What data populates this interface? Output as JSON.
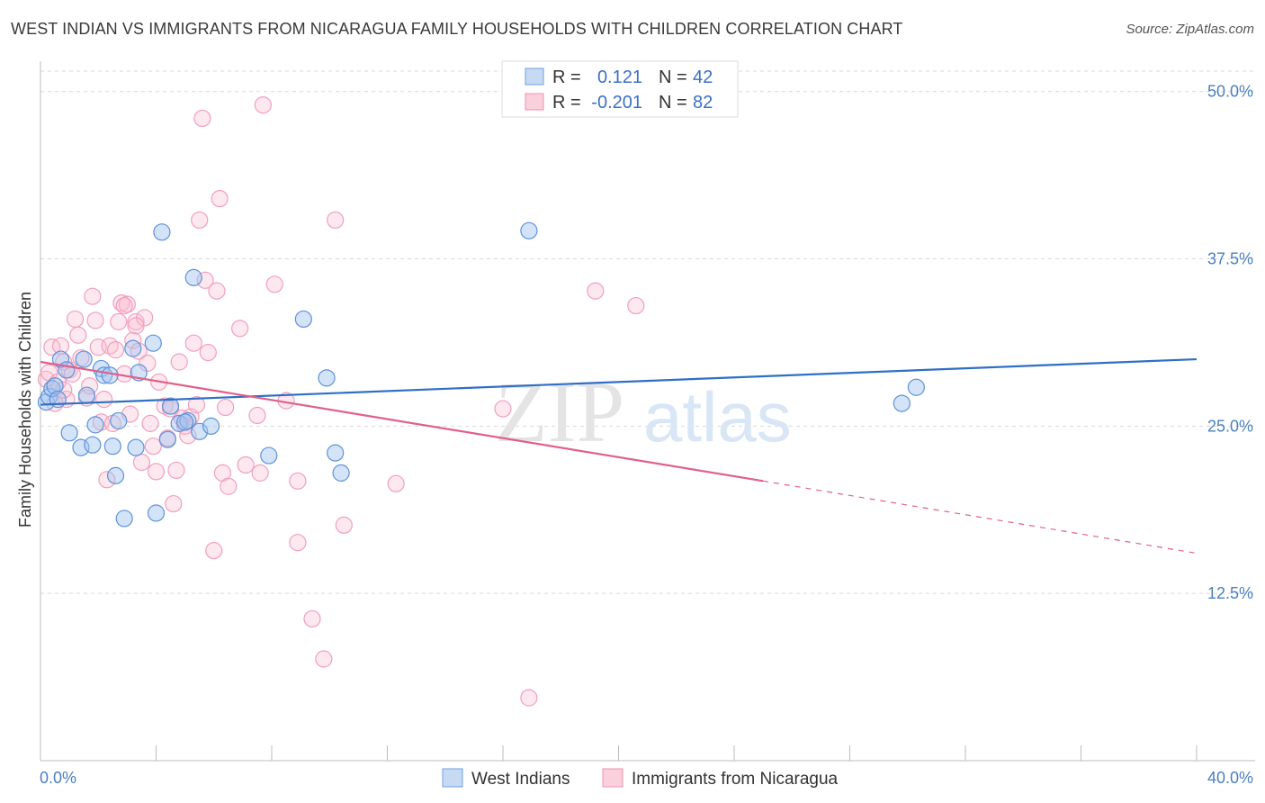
{
  "header": {
    "title": "WEST INDIAN VS IMMIGRANTS FROM NICARAGUA FAMILY HOUSEHOLDS WITH CHILDREN CORRELATION CHART",
    "source": "Source: ZipAtlas.com"
  },
  "watermark": {
    "zip": "ZIP",
    "atlas": "atlas"
  },
  "legend_top": [
    {
      "r_label": "R =",
      "r_value": "0.121",
      "n_label": "N =",
      "n_value": "42"
    },
    {
      "r_label": "R =",
      "r_value": "-0.201",
      "n_label": "N =",
      "n_value": "82"
    }
  ],
  "chart_data": {
    "type": "scatter",
    "title": "WEST INDIAN VS IMMIGRANTS FROM NICARAGUA FAMILY HOUSEHOLDS WITH CHILDREN CORRELATION CHART",
    "xlabel": "",
    "ylabel": "Family Households with Children",
    "xlim": [
      0,
      40
    ],
    "ylim": [
      0,
      52
    ],
    "x_tick_labels": [
      "0.0%",
      "40.0%"
    ],
    "y_ticks": [
      12.5,
      25.0,
      37.5,
      50.0
    ],
    "y_tick_labels": [
      "12.5%",
      "25.0%",
      "37.5%",
      "50.0%"
    ],
    "grid": true,
    "legend_position": "top-center",
    "colors": {
      "west_indians": "#6f9fe0",
      "nicaragua": "#f08fae",
      "blue_line": "#2f6fc7",
      "pink_line": "#e0608a"
    },
    "series": [
      {
        "name": "West Indians",
        "trend": {
          "x0": 0,
          "y0": 26.6,
          "x1": 40,
          "y1": 30.0
        },
        "points": [
          [
            0.2,
            26.8
          ],
          [
            0.3,
            27.2
          ],
          [
            0.4,
            27.8
          ],
          [
            0.5,
            28.0
          ],
          [
            0.6,
            27.0
          ],
          [
            0.7,
            30.0
          ],
          [
            0.9,
            29.2
          ],
          [
            1.0,
            24.5
          ],
          [
            1.4,
            23.4
          ],
          [
            1.5,
            30.0
          ],
          [
            1.6,
            27.3
          ],
          [
            1.8,
            23.6
          ],
          [
            1.9,
            25.1
          ],
          [
            2.1,
            29.3
          ],
          [
            2.2,
            28.8
          ],
          [
            2.4,
            28.8
          ],
          [
            2.5,
            23.5
          ],
          [
            2.6,
            21.3
          ],
          [
            2.7,
            25.4
          ],
          [
            2.9,
            18.1
          ],
          [
            3.2,
            30.8
          ],
          [
            3.3,
            23.4
          ],
          [
            3.4,
            29.0
          ],
          [
            3.9,
            31.2
          ],
          [
            4.0,
            18.5
          ],
          [
            4.2,
            39.5
          ],
          [
            4.4,
            24.0
          ],
          [
            4.5,
            26.5
          ],
          [
            4.8,
            25.2
          ],
          [
            5.1,
            25.4
          ],
          [
            5.3,
            36.1
          ],
          [
            5.5,
            24.6
          ],
          [
            5.9,
            25.0
          ],
          [
            7.9,
            22.8
          ],
          [
            9.1,
            33.0
          ],
          [
            9.9,
            28.6
          ],
          [
            10.2,
            23.0
          ],
          [
            10.4,
            21.5
          ],
          [
            16.9,
            39.6
          ],
          [
            29.8,
            26.7
          ],
          [
            30.3,
            27.9
          ],
          [
            5.0,
            25.3
          ]
        ]
      },
      {
        "name": "Immigrants from Nicaragua",
        "trend": {
          "x0": 0,
          "y0": 29.8,
          "x1": 25,
          "y1": 20.9,
          "x_dash_end": 40,
          "y_dash_end": 15.5
        },
        "points": [
          [
            0.2,
            28.5
          ],
          [
            0.3,
            29.0
          ],
          [
            0.4,
            30.9
          ],
          [
            0.5,
            26.7
          ],
          [
            0.6,
            28.3
          ],
          [
            0.7,
            31.0
          ],
          [
            0.8,
            29.8
          ],
          [
            0.9,
            27.0
          ],
          [
            1.0,
            29.2
          ],
          [
            1.2,
            33.0
          ],
          [
            1.3,
            31.8
          ],
          [
            1.4,
            30.1
          ],
          [
            1.6,
            27.1
          ],
          [
            1.7,
            28.0
          ],
          [
            1.8,
            34.7
          ],
          [
            1.9,
            32.9
          ],
          [
            2.0,
            30.9
          ],
          [
            2.1,
            25.3
          ],
          [
            2.2,
            27.0
          ],
          [
            2.3,
            21.0
          ],
          [
            2.4,
            31.0
          ],
          [
            2.5,
            25.2
          ],
          [
            2.6,
            30.7
          ],
          [
            2.7,
            32.8
          ],
          [
            2.8,
            34.2
          ],
          [
            2.9,
            28.9
          ],
          [
            3.0,
            34.1
          ],
          [
            3.1,
            25.9
          ],
          [
            3.2,
            31.4
          ],
          [
            3.3,
            32.8
          ],
          [
            3.4,
            30.6
          ],
          [
            3.5,
            22.3
          ],
          [
            3.6,
            33.1
          ],
          [
            3.7,
            29.7
          ],
          [
            3.8,
            25.2
          ],
          [
            3.9,
            23.5
          ],
          [
            4.0,
            21.6
          ],
          [
            4.1,
            28.3
          ],
          [
            4.3,
            26.5
          ],
          [
            4.4,
            24.1
          ],
          [
            4.5,
            26.3
          ],
          [
            4.6,
            19.2
          ],
          [
            4.7,
            21.7
          ],
          [
            4.8,
            29.8
          ],
          [
            4.9,
            25.6
          ],
          [
            5.0,
            25.0
          ],
          [
            5.1,
            24.3
          ],
          [
            5.2,
            25.7
          ],
          [
            5.3,
            31.2
          ],
          [
            5.4,
            26.6
          ],
          [
            5.5,
            40.4
          ],
          [
            5.6,
            48.0
          ],
          [
            5.7,
            35.9
          ],
          [
            5.8,
            30.5
          ],
          [
            6.0,
            15.7
          ],
          [
            6.1,
            35.1
          ],
          [
            6.2,
            42.0
          ],
          [
            6.3,
            21.5
          ],
          [
            6.4,
            26.4
          ],
          [
            6.5,
            20.5
          ],
          [
            6.9,
            32.3
          ],
          [
            7.1,
            22.1
          ],
          [
            7.5,
            25.8
          ],
          [
            7.6,
            21.5
          ],
          [
            7.7,
            49.0
          ],
          [
            8.1,
            35.6
          ],
          [
            8.5,
            26.9
          ],
          [
            8.9,
            16.3
          ],
          [
            8.9,
            20.9
          ],
          [
            9.4,
            10.6
          ],
          [
            9.8,
            7.6
          ],
          [
            10.2,
            40.4
          ],
          [
            10.5,
            17.6
          ],
          [
            12.3,
            20.7
          ],
          [
            16.0,
            26.3
          ],
          [
            16.9,
            4.7
          ],
          [
            19.2,
            35.1
          ],
          [
            20.6,
            34.0
          ],
          [
            3.3,
            32.5
          ],
          [
            2.9,
            34.0
          ],
          [
            1.1,
            28.9
          ],
          [
            0.8,
            27.7
          ]
        ]
      }
    ]
  },
  "bottom_legend": [
    {
      "label": "West Indians"
    },
    {
      "label": "Immigrants from Nicaragua"
    }
  ]
}
